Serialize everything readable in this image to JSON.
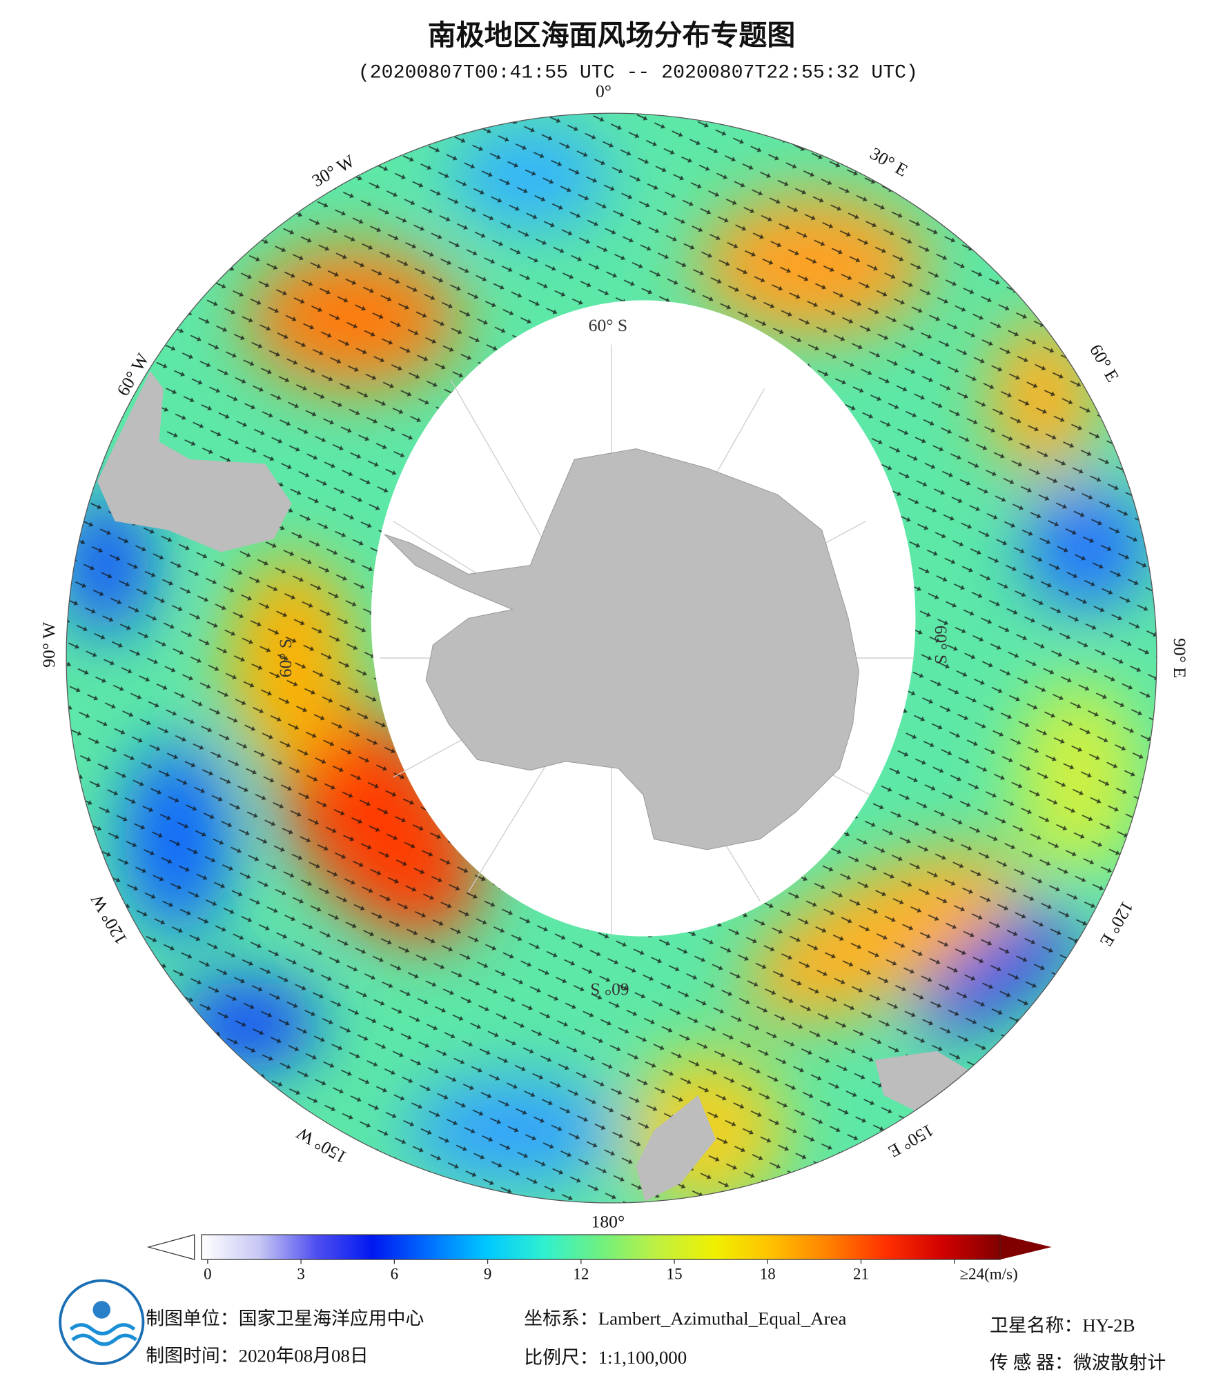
{
  "title": "南极地区海面风场分布专题图",
  "subtitle": "(20200807T00:41:55 UTC -- 20200807T22:55:32 UTC)",
  "longitude_labels": [
    "0°",
    "30° E",
    "60° E",
    "90° E",
    "120° E",
    "150° E",
    "180°",
    "150° W",
    "120° W",
    "90° W",
    "60° W",
    "30° W"
  ],
  "latitude_labels": [
    "60° S",
    "60° S",
    "60° S",
    "60° S"
  ],
  "colorbar": {
    "lim": [
      0,
      24
    ],
    "ticks": [
      0,
      3,
      6,
      9,
      12,
      15,
      18,
      21,
      {
        "value": 24,
        "label": "≥24(m/s)"
      }
    ],
    "colors": [
      "#ffffff",
      "#c8c8f5",
      "#5050f0",
      "#0018f0",
      "#0070ff",
      "#00c8ff",
      "#30f0d0",
      "#70f080",
      "#c0f040",
      "#f0f000",
      "#ffc000",
      "#ff8000",
      "#ff3000",
      "#d00000",
      "#800000"
    ]
  },
  "footer": {
    "unit": "制图单位：国家卫星海洋应用中心",
    "date": "制图时间：2020年08月08日",
    "projection": "坐标系：Lambert_Azimuthal_Equal_Area",
    "scale": "比例尺：1:1,100,000",
    "satellite": "卫星名称：HY-2B",
    "sensor": "传 感 器：微波散射计"
  }
}
